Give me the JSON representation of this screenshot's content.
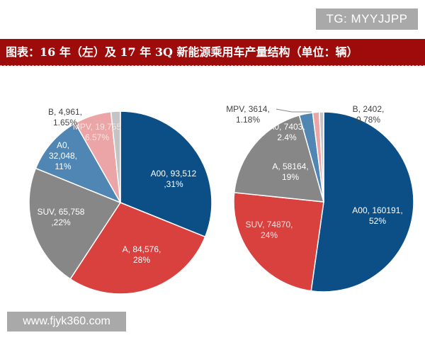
{
  "watermark_top": "TG: MYYJJPP",
  "watermark_bottom": "www.fjyk360.com",
  "title": "图表：16 年（左）及 17 年 3Q 新能源乘用车产量结构（单位：辆）",
  "chart_data": [
    {
      "type": "pie",
      "title": "",
      "start": "top",
      "direction": "clockwise",
      "slices": [
        {
          "name": "A00",
          "value": 93512,
          "percent": "31%",
          "color": "#0b4f86",
          "label": "A00, 93,512\n,31%"
        },
        {
          "name": "A",
          "value": 84576,
          "percent": "28%",
          "color": "#d9413f",
          "label": "A, 84,576,\n28%"
        },
        {
          "name": "SUV",
          "value": 65758,
          "percent": "22%",
          "color": "#878787",
          "label": "SUV, 65,758\n,22%"
        },
        {
          "name": "A0",
          "value": 32048,
          "percent": "11%",
          "color": "#4f86b3",
          "label": "A0,\n32,048,\n11%"
        },
        {
          "name": "MPV",
          "value": 19755,
          "percent": "6.57%",
          "color": "#eba5a6",
          "label": "MPV, 19,755\n6.57%"
        },
        {
          "name": "B",
          "value": 4961,
          "percent": "1.65%",
          "color": "#c4c4c4",
          "label": "B, 4,961,\n1.65%"
        }
      ]
    },
    {
      "type": "pie",
      "title": "",
      "start": "top",
      "direction": "clockwise",
      "slices": [
        {
          "name": "A00",
          "value": 160191,
          "percent": "52%",
          "color": "#0b4f86",
          "label": "A00, 160191,\n52%"
        },
        {
          "name": "SUV",
          "value": 74870,
          "percent": "24%",
          "color": "#d9413f",
          "label": "SUV, 74870,\n24%"
        },
        {
          "name": "A",
          "value": 58164,
          "percent": "19%",
          "color": "#878787",
          "label": "A, 58164,\n19%"
        },
        {
          "name": "A0",
          "value": 7403,
          "percent": "2.4%",
          "color": "#4f86b3",
          "label": "A0, 7403,\n2.4%"
        },
        {
          "name": "MPV",
          "value": 3614,
          "percent": "1.18%",
          "color": "#eba5a6",
          "label": "MPV, 3614,\n1.18%"
        },
        {
          "name": "B",
          "value": 2402,
          "percent": "0.78%",
          "color": "#c4c4c4",
          "label": "B, 2402,\n0.78%"
        }
      ]
    }
  ]
}
